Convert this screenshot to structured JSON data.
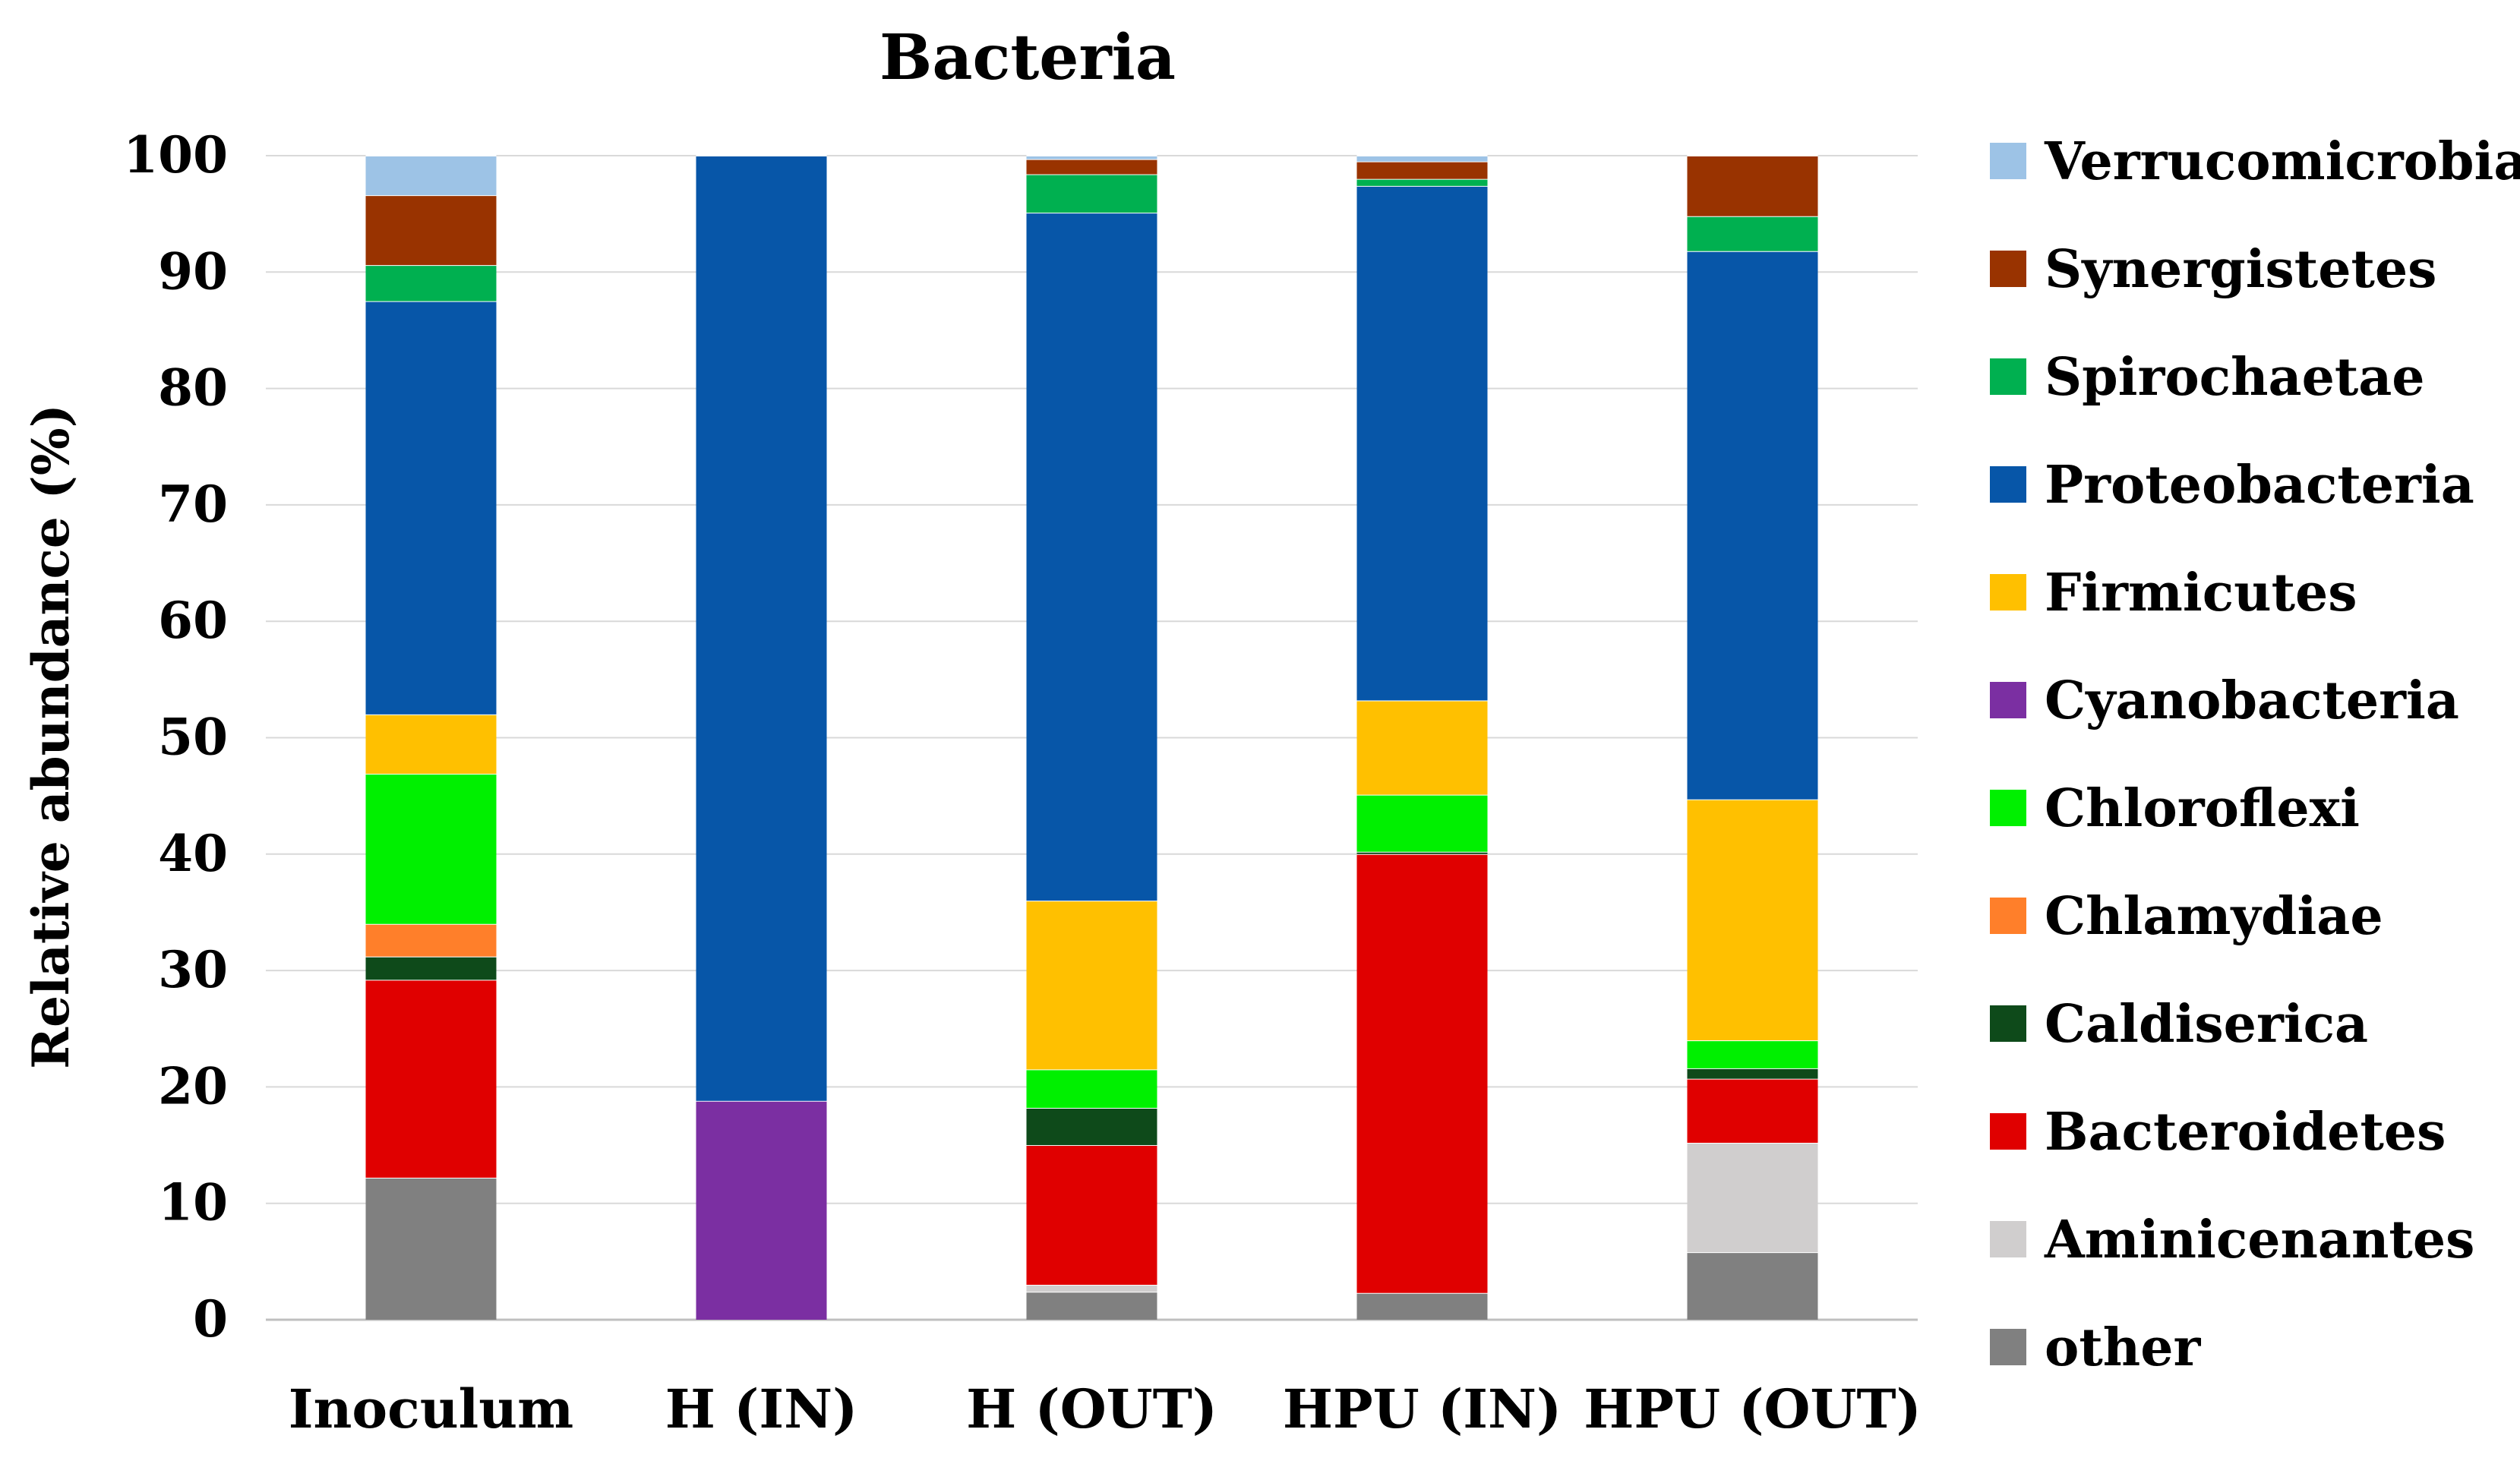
{
  "chart_data": {
    "type": "bar",
    "stacked": true,
    "title": "Bacteria",
    "ylabel": "Relative abundance (%)",
    "xlabel": "",
    "ylim": [
      0,
      100
    ],
    "yticks": [
      0,
      10,
      20,
      30,
      40,
      50,
      60,
      70,
      80,
      90,
      100
    ],
    "grid": true,
    "legend_position": "right",
    "categories": [
      "Inoculum",
      "H (IN)",
      "H (OUT)",
      "HPU (IN)",
      "HPU (OUT)"
    ],
    "series": [
      {
        "name": "other",
        "color": "#808080",
        "values": [
          12.2,
          0.0,
          2.4,
          2.3,
          5.8
        ]
      },
      {
        "name": "Aminicenantes",
        "color": "#d0cece",
        "values": [
          0.0,
          0.0,
          0.6,
          0.0,
          9.4
        ]
      },
      {
        "name": "Bacteroidetes",
        "color": "#e00000",
        "values": [
          17.0,
          0.0,
          12.0,
          37.7,
          5.5
        ]
      },
      {
        "name": "Caldiserica",
        "color": "#0e4a1a",
        "values": [
          2.0,
          0.0,
          3.2,
          0.2,
          0.9
        ]
      },
      {
        "name": "Chlamydiae",
        "color": "#ff7f2a",
        "values": [
          2.8,
          0.0,
          0.0,
          0.0,
          0.0
        ]
      },
      {
        "name": "Chloroflexi",
        "color": "#00f000",
        "values": [
          12.9,
          0.0,
          3.3,
          4.9,
          2.4
        ]
      },
      {
        "name": "Cyanobacteria",
        "color": "#7b2fa2",
        "values": [
          0.0,
          18.8,
          0.0,
          0.0,
          0.0
        ]
      },
      {
        "name": "Firmicutes",
        "color": "#ffc000",
        "values": [
          5.1,
          0.0,
          14.5,
          8.1,
          20.7
        ]
      },
      {
        "name": "Proteobacteria",
        "color": "#0756a8",
        "values": [
          35.5,
          81.2,
          59.1,
          44.2,
          47.1
        ]
      },
      {
        "name": "Spirochaetae",
        "color": "#00b050",
        "values": [
          3.1,
          0.0,
          3.3,
          0.6,
          3.0
        ]
      },
      {
        "name": "Synergistetes",
        "color": "#993300",
        "values": [
          6.0,
          0.0,
          1.3,
          1.5,
          5.2
        ]
      },
      {
        "name": "Verrucomicrobia",
        "color": "#9dc3e6",
        "values": [
          3.4,
          0.0,
          0.3,
          0.5,
          0.0
        ]
      }
    ]
  }
}
